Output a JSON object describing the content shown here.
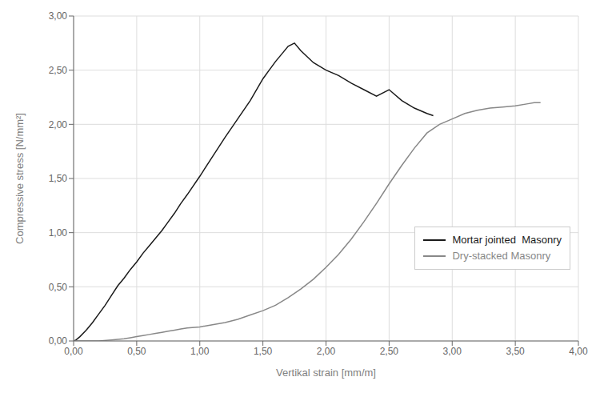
{
  "chart_data": {
    "type": "line",
    "xlabel": "Vertikal strain [mm/m]",
    "ylabel": "Compressive stress [N/mm²]",
    "xlim": [
      0.0,
      4.0
    ],
    "ylim": [
      0.0,
      3.0
    ],
    "xticks": [
      {
        "value": 0.0,
        "label": "0,00"
      },
      {
        "value": 0.5,
        "label": "0,50"
      },
      {
        "value": 1.0,
        "label": "1,00"
      },
      {
        "value": 1.5,
        "label": "1,50"
      },
      {
        "value": 2.0,
        "label": "2,00"
      },
      {
        "value": 2.5,
        "label": "2,50"
      },
      {
        "value": 3.0,
        "label": "3,00"
      },
      {
        "value": 3.5,
        "label": "3,50"
      },
      {
        "value": 4.0,
        "label": "4,00"
      }
    ],
    "yticks": [
      {
        "value": 0.0,
        "label": "0,00"
      },
      {
        "value": 0.5,
        "label": "0,50"
      },
      {
        "value": 1.0,
        "label": "1,00"
      },
      {
        "value": 1.5,
        "label": "1,50"
      },
      {
        "value": 2.0,
        "label": "2,00"
      },
      {
        "value": 2.5,
        "label": "2,50"
      },
      {
        "value": 3.0,
        "label": "3,00"
      }
    ],
    "grid": true,
    "legend": "lower right",
    "series": [
      {
        "name": "Mortar jointed  Masonry",
        "color": "#1a1a1a",
        "x": [
          0.0,
          0.02,
          0.05,
          0.1,
          0.15,
          0.2,
          0.25,
          0.3,
          0.35,
          0.4,
          0.45,
          0.5,
          0.55,
          0.6,
          0.65,
          0.7,
          0.75,
          0.8,
          0.85,
          0.9,
          1.0,
          1.1,
          1.2,
          1.3,
          1.4,
          1.5,
          1.55,
          1.6,
          1.65,
          1.7,
          1.75,
          1.8,
          1.9,
          2.0,
          2.1,
          2.2,
          2.3,
          2.4,
          2.5,
          2.6,
          2.7,
          2.8,
          2.85
        ],
        "values": [
          0.0,
          0.01,
          0.04,
          0.1,
          0.17,
          0.25,
          0.33,
          0.42,
          0.51,
          0.58,
          0.66,
          0.73,
          0.81,
          0.88,
          0.95,
          1.02,
          1.1,
          1.18,
          1.27,
          1.35,
          1.52,
          1.7,
          1.88,
          2.05,
          2.22,
          2.42,
          2.5,
          2.58,
          2.65,
          2.72,
          2.75,
          2.68,
          2.57,
          2.5,
          2.45,
          2.38,
          2.32,
          2.26,
          2.32,
          2.22,
          2.15,
          2.1,
          2.08
        ]
      },
      {
        "name": "Dry-stacked Masonry",
        "color": "#888888",
        "x": [
          0.0,
          0.1,
          0.2,
          0.3,
          0.4,
          0.45,
          0.5,
          0.55,
          0.6,
          0.65,
          0.7,
          0.75,
          0.8,
          0.85,
          0.9,
          1.0,
          1.1,
          1.2,
          1.3,
          1.4,
          1.5,
          1.6,
          1.7,
          1.8,
          1.9,
          2.0,
          2.1,
          2.2,
          2.3,
          2.4,
          2.5,
          2.6,
          2.7,
          2.8,
          2.9,
          3.0,
          3.1,
          3.2,
          3.3,
          3.4,
          3.5,
          3.6,
          3.65,
          3.7
        ],
        "values": [
          0.0,
          0.0,
          0.0,
          0.01,
          0.02,
          0.03,
          0.04,
          0.05,
          0.06,
          0.07,
          0.08,
          0.09,
          0.1,
          0.11,
          0.12,
          0.13,
          0.15,
          0.17,
          0.2,
          0.24,
          0.28,
          0.33,
          0.4,
          0.48,
          0.57,
          0.68,
          0.8,
          0.94,
          1.1,
          1.27,
          1.45,
          1.62,
          1.78,
          1.92,
          2.0,
          2.05,
          2.1,
          2.13,
          2.15,
          2.16,
          2.17,
          2.19,
          2.2,
          2.2
        ]
      }
    ]
  }
}
